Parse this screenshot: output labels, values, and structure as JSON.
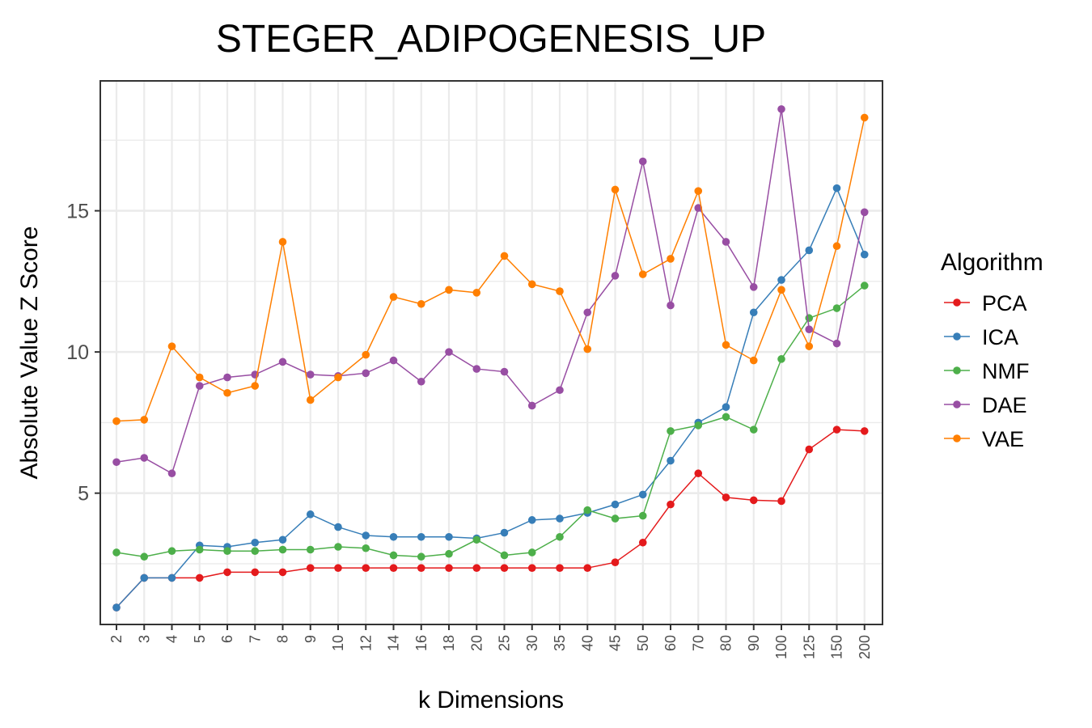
{
  "chart_data": {
    "type": "line",
    "title": "STEGER_ADIPOGENESIS_UP",
    "xlabel": "k Dimensions",
    "ylabel": "Absolute Value Z Score",
    "legend_title": "Algorithm",
    "legend_placement": "right",
    "grid": true,
    "ylim": [
      0.35,
      19.6
    ],
    "yticks": [
      5,
      10,
      15
    ],
    "categories": [
      "2",
      "3",
      "4",
      "5",
      "6",
      "7",
      "8",
      "9",
      "10",
      "12",
      "14",
      "16",
      "18",
      "20",
      "25",
      "30",
      "35",
      "40",
      "45",
      "50",
      "60",
      "70",
      "80",
      "90",
      "100",
      "125",
      "150",
      "200"
    ],
    "series": [
      {
        "name": "PCA",
        "color": "#e41a1c",
        "values": [
          0.95,
          2.0,
          2.0,
          2.0,
          2.2,
          2.2,
          2.2,
          2.35,
          2.35,
          2.35,
          2.35,
          2.35,
          2.35,
          2.35,
          2.35,
          2.35,
          2.35,
          2.35,
          2.55,
          3.25,
          4.6,
          5.7,
          4.85,
          4.75,
          4.72,
          6.55,
          7.25,
          7.2
        ]
      },
      {
        "name": "ICA",
        "color": "#377eb8",
        "values": [
          0.95,
          2.0,
          2.0,
          3.15,
          3.1,
          3.25,
          3.35,
          4.25,
          3.8,
          3.5,
          3.45,
          3.45,
          3.45,
          3.4,
          3.6,
          4.05,
          4.1,
          4.3,
          4.6,
          4.95,
          6.15,
          7.5,
          8.05,
          11.4,
          12.55,
          13.6,
          15.8,
          13.45
        ]
      },
      {
        "name": "NMF",
        "color": "#4daf4a",
        "values": [
          2.9,
          2.75,
          2.95,
          3.0,
          2.95,
          2.95,
          3.0,
          3.0,
          3.1,
          3.05,
          2.8,
          2.75,
          2.85,
          3.35,
          2.8,
          2.9,
          3.45,
          4.4,
          4.1,
          4.2,
          7.2,
          7.4,
          7.7,
          7.25,
          9.75,
          11.2,
          11.55,
          12.35
        ]
      },
      {
        "name": "DAE",
        "color": "#984ea3",
        "values": [
          6.1,
          6.25,
          5.7,
          8.8,
          9.1,
          9.2,
          9.65,
          9.2,
          9.15,
          9.25,
          9.7,
          8.95,
          10.0,
          9.4,
          9.3,
          8.1,
          8.65,
          11.4,
          12.7,
          16.75,
          11.65,
          15.1,
          13.9,
          12.3,
          18.6,
          10.8,
          10.3,
          14.95
        ]
      },
      {
        "name": "VAE",
        "color": "#ff7f00",
        "values": [
          7.55,
          7.6,
          10.2,
          9.1,
          8.55,
          8.8,
          13.9,
          8.3,
          9.1,
          9.9,
          11.95,
          11.7,
          12.2,
          12.1,
          13.4,
          12.4,
          12.15,
          10.1,
          15.75,
          12.75,
          13.3,
          15.7,
          10.25,
          9.7,
          12.2,
          10.2,
          13.75,
          18.3
        ]
      }
    ]
  }
}
